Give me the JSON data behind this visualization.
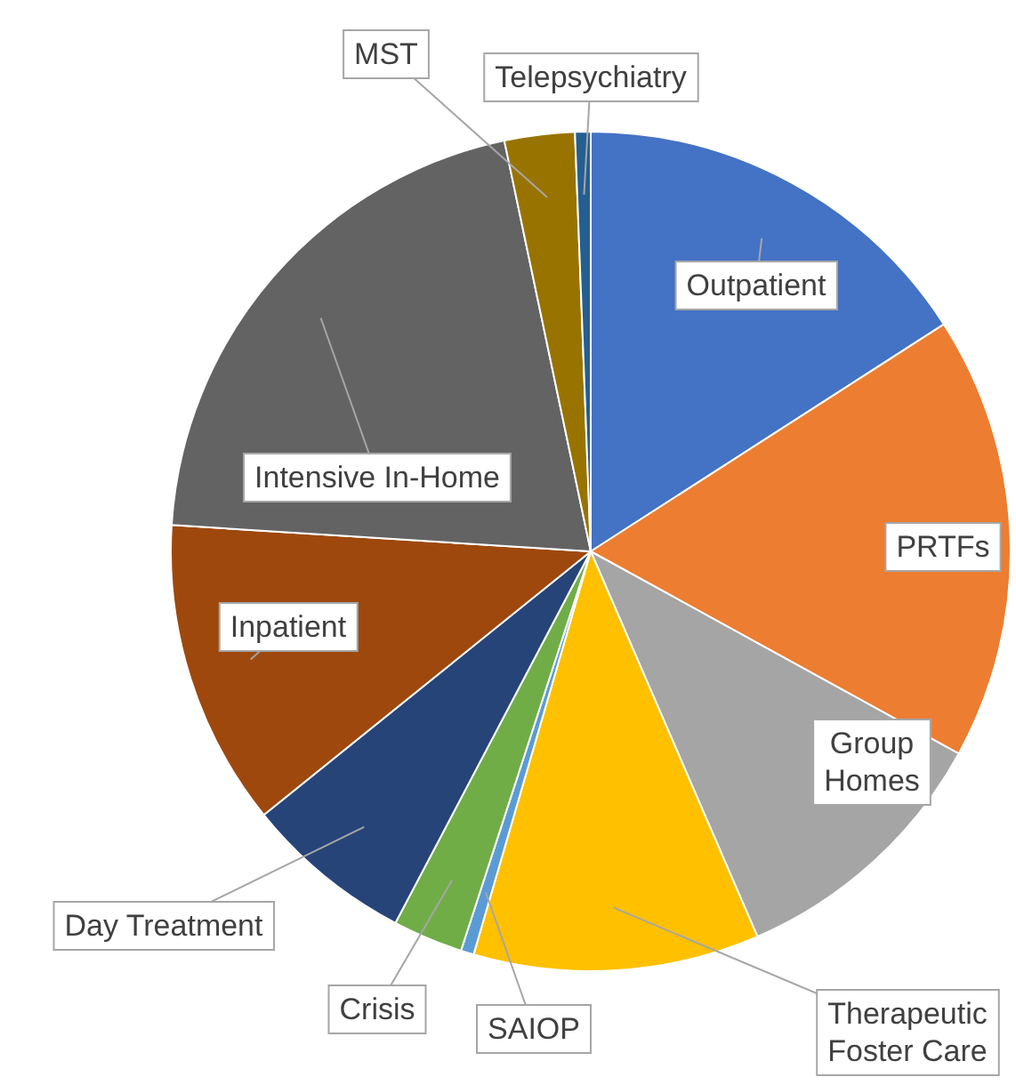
{
  "chart_data": {
    "type": "pie",
    "categories": [
      "Outpatient",
      "PRTFs",
      "Group Homes",
      "Therapeutic Foster Care",
      "SAIOP",
      "Crisis",
      "Day Treatment",
      "Inpatient",
      "Intensive In-Home",
      "MST",
      "Telepsychiatry"
    ],
    "values": [
      15.9,
      17.1,
      10.5,
      11,
      0.5,
      2.7,
      6.5,
      11.8,
      20.7,
      2.7,
      0.6
    ],
    "colors": [
      "#4472c4",
      "#ed7d31",
      "#a5a5a5",
      "#ffc000",
      "#5b9bd5",
      "#70ad47",
      "#264478",
      "#9e480e",
      "#636363",
      "#997300",
      "#255e91"
    ]
  }
}
